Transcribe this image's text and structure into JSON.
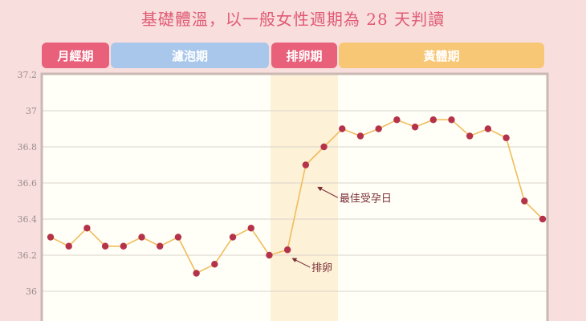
{
  "title": "基礎體溫，以一般女性週期為 28 天判讀",
  "colors": {
    "background": "#f8dfde",
    "title": "#e05a73",
    "menstrual": "#e8607a",
    "follicular": "#a9c7ea",
    "ovulation": "#e8607a",
    "luteal": "#f8c776",
    "line": "#f1bc5c",
    "point": "#b5334a",
    "ovulation_band": "#fdf1d8",
    "plot_bg": "#fffff8"
  },
  "phases": [
    {
      "label": "月經期",
      "start_day": 1,
      "end_day": 4,
      "color": "#e8607a"
    },
    {
      "label": "濾泡期",
      "start_day": 4,
      "end_day": 13,
      "color": "#a9c7ea"
    },
    {
      "label": "排卵期",
      "start_day": 13,
      "end_day": 17,
      "color": "#e8607a"
    },
    {
      "label": "黃體期",
      "start_day": 17,
      "end_day": 28,
      "color": "#f8c776"
    }
  ],
  "chart_data": {
    "type": "line",
    "title": "基礎體溫，以一般女性週期為 28 天判讀",
    "xlabel": "",
    "ylabel": "",
    "x": [
      1,
      2,
      3,
      4,
      5,
      6,
      7,
      8,
      9,
      10,
      11,
      12,
      13,
      14,
      15,
      16,
      17,
      18,
      19,
      20,
      21,
      22,
      23,
      24,
      25,
      26,
      27,
      28
    ],
    "values": [
      36.3,
      36.25,
      36.35,
      36.25,
      36.25,
      36.3,
      36.25,
      36.3,
      36.1,
      36.15,
      36.3,
      36.35,
      36.2,
      36.23,
      36.7,
      36.8,
      36.9,
      36.86,
      36.9,
      36.95,
      36.91,
      36.95,
      36.95,
      36.86,
      36.9,
      36.85,
      36.5,
      36.4
    ],
    "ylim": [
      35.9,
      37.2
    ],
    "yticks": [
      36,
      36.2,
      36.4,
      36.6,
      36.8,
      37,
      37.2
    ],
    "ytick_labels": [
      "36",
      "36.2",
      "36.4",
      "36.6",
      "36.8",
      "37",
      "37.2"
    ],
    "grid": true,
    "ovulation_band_days": [
      13,
      17
    ],
    "annotations": [
      {
        "text": "最佳受孕日",
        "day": 15,
        "value": 36.55
      },
      {
        "text": "排卵",
        "day": 14,
        "value": 36.2
      }
    ]
  }
}
